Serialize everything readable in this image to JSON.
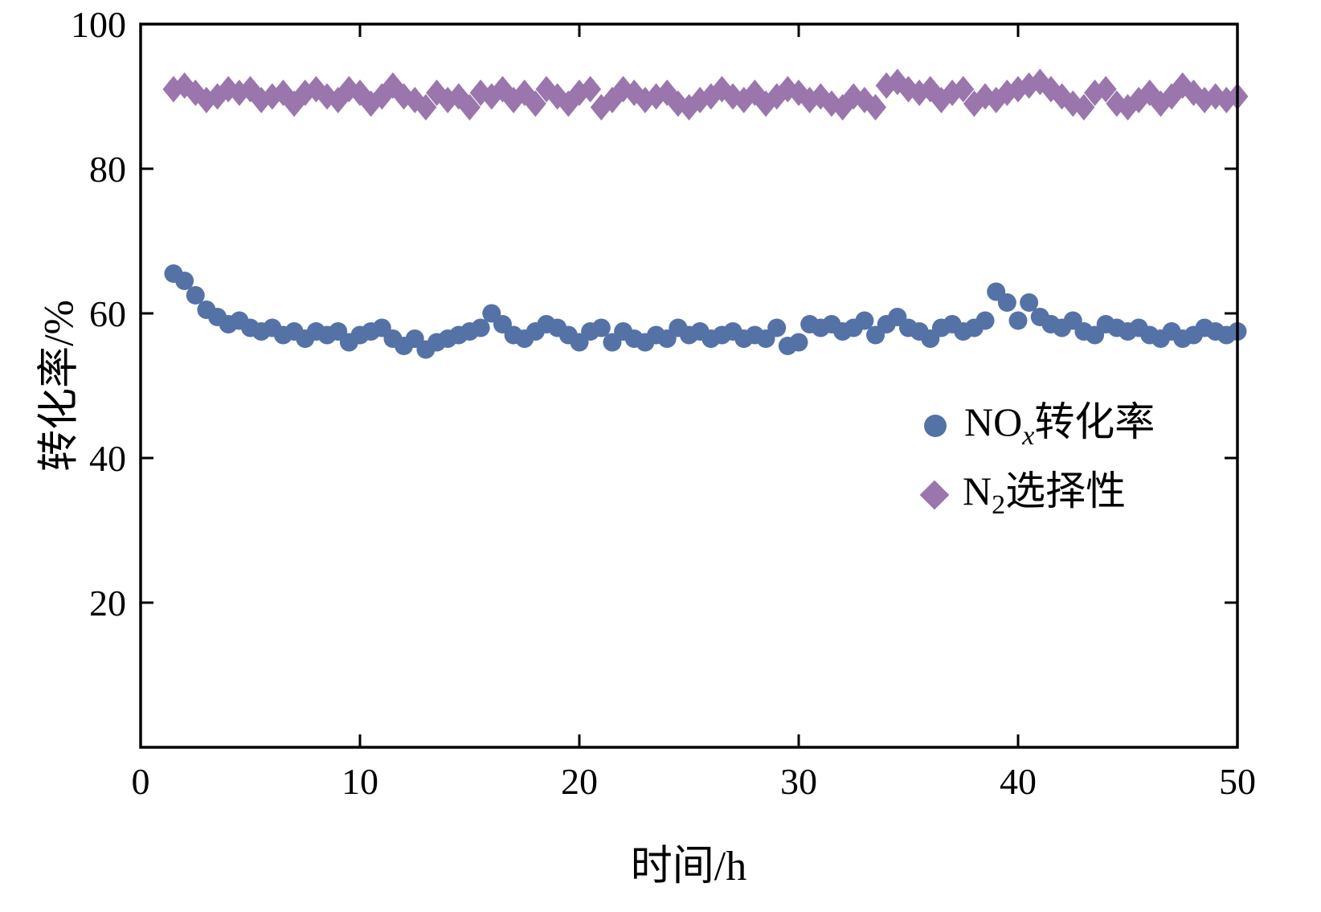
{
  "chart_data": {
    "type": "scatter",
    "title": "",
    "xlabel": "时间/h",
    "ylabel": "转化率/%",
    "xlim": [
      0,
      50
    ],
    "ylim": [
      0,
      100
    ],
    "xticks": [
      0,
      10,
      20,
      30,
      40,
      50
    ],
    "yticks": [
      20,
      40,
      60,
      80,
      100
    ],
    "grid": false,
    "legend_position": "inside-right-center",
    "x": [
      1.5,
      2,
      2.5,
      3,
      3.5,
      4,
      4.5,
      5,
      5.5,
      6,
      6.5,
      7,
      7.5,
      8,
      8.5,
      9,
      9.5,
      10,
      10.5,
      11,
      11.5,
      12,
      12.5,
      13,
      13.5,
      14,
      14.5,
      15,
      15.5,
      16,
      16.5,
      17,
      17.5,
      18,
      18.5,
      19,
      19.5,
      20,
      20.5,
      21,
      21.5,
      22,
      22.5,
      23,
      23.5,
      24,
      24.5,
      25,
      25.5,
      26,
      26.5,
      27,
      27.5,
      28,
      28.5,
      29,
      29.5,
      30,
      30.5,
      31,
      31.5,
      32,
      32.5,
      33,
      33.5,
      34,
      34.5,
      35,
      35.5,
      36,
      36.5,
      37,
      37.5,
      38,
      38.5,
      39,
      39.5,
      40,
      40.5,
      41,
      41.5,
      42,
      42.5,
      43,
      43.5,
      44,
      44.5,
      45,
      45.5,
      46,
      46.5,
      47,
      47.5,
      48,
      48.5,
      49,
      49.5,
      50
    ],
    "series": [
      {
        "name": "NOx转化率",
        "marker": "circle",
        "color": "#5572a7",
        "values": [
          65.5,
          64.5,
          62.5,
          60.5,
          59.5,
          58.5,
          59.0,
          58.0,
          57.5,
          58.0,
          57.0,
          57.5,
          56.5,
          57.5,
          57.0,
          57.5,
          56.0,
          57.0,
          57.5,
          58.0,
          56.5,
          55.5,
          56.5,
          55.0,
          56.0,
          56.5,
          57.0,
          57.5,
          58.0,
          60.0,
          58.5,
          57.0,
          56.5,
          57.5,
          58.5,
          58.0,
          57.0,
          56.0,
          57.5,
          58.0,
          56.0,
          57.5,
          56.5,
          56.0,
          57.0,
          56.5,
          58.0,
          57.0,
          57.5,
          56.5,
          57.0,
          57.5,
          56.5,
          57.0,
          56.5,
          58.0,
          55.5,
          56.0,
          58.5,
          58.0,
          58.5,
          57.5,
          58.0,
          59.0,
          57.0,
          58.5,
          59.5,
          58.0,
          57.5,
          56.5,
          58.0,
          58.5,
          57.5,
          58.0,
          59.0,
          63.0,
          61.5,
          59.0,
          61.5,
          59.5,
          58.5,
          58.0,
          59.0,
          57.5,
          57.0,
          58.5,
          58.0,
          57.5,
          58.0,
          57.0,
          56.5,
          57.5,
          56.5,
          57.0,
          58.0,
          57.5,
          57.0,
          57.5
        ]
      },
      {
        "name": "N2选择性",
        "marker": "diamond",
        "color": "#9a76ad",
        "values": [
          91.0,
          91.5,
          90.5,
          89.5,
          90.0,
          91.0,
          90.5,
          91.0,
          89.5,
          90.0,
          90.5,
          89.0,
          90.5,
          91.0,
          90.0,
          89.5,
          91.0,
          90.5,
          89.0,
          90.0,
          91.5,
          90.0,
          89.5,
          88.5,
          90.5,
          89.5,
          90.0,
          88.5,
          90.5,
          90.0,
          91.0,
          89.5,
          90.5,
          89.0,
          91.0,
          90.0,
          89.0,
          90.5,
          91.0,
          88.5,
          89.5,
          91.0,
          90.5,
          89.5,
          90.0,
          90.5,
          89.0,
          88.5,
          89.5,
          90.0,
          91.0,
          90.0,
          89.5,
          90.5,
          89.0,
          90.0,
          91.0,
          90.5,
          89.5,
          90.0,
          89.0,
          88.5,
          90.0,
          89.5,
          88.5,
          91.5,
          92.0,
          91.0,
          90.5,
          91.0,
          89.5,
          90.5,
          91.0,
          89.0,
          90.0,
          89.5,
          90.5,
          91.0,
          91.5,
          92.0,
          91.0,
          90.0,
          89.0,
          88.5,
          90.5,
          91.0,
          89.0,
          88.5,
          89.5,
          90.5,
          89.0,
          90.0,
          91.5,
          90.5,
          89.5,
          90.0,
          89.5,
          90.0
        ]
      }
    ],
    "legend": {
      "items": [
        {
          "pre": "NO",
          "sub": "x",
          "sub_italic": true,
          "post": "转化率",
          "marker": "circle",
          "color": "#5572a7"
        },
        {
          "pre": "N",
          "sub": "2",
          "sub_italic": false,
          "post": "选择性",
          "marker": "diamond",
          "color": "#9a76ad"
        }
      ]
    }
  }
}
